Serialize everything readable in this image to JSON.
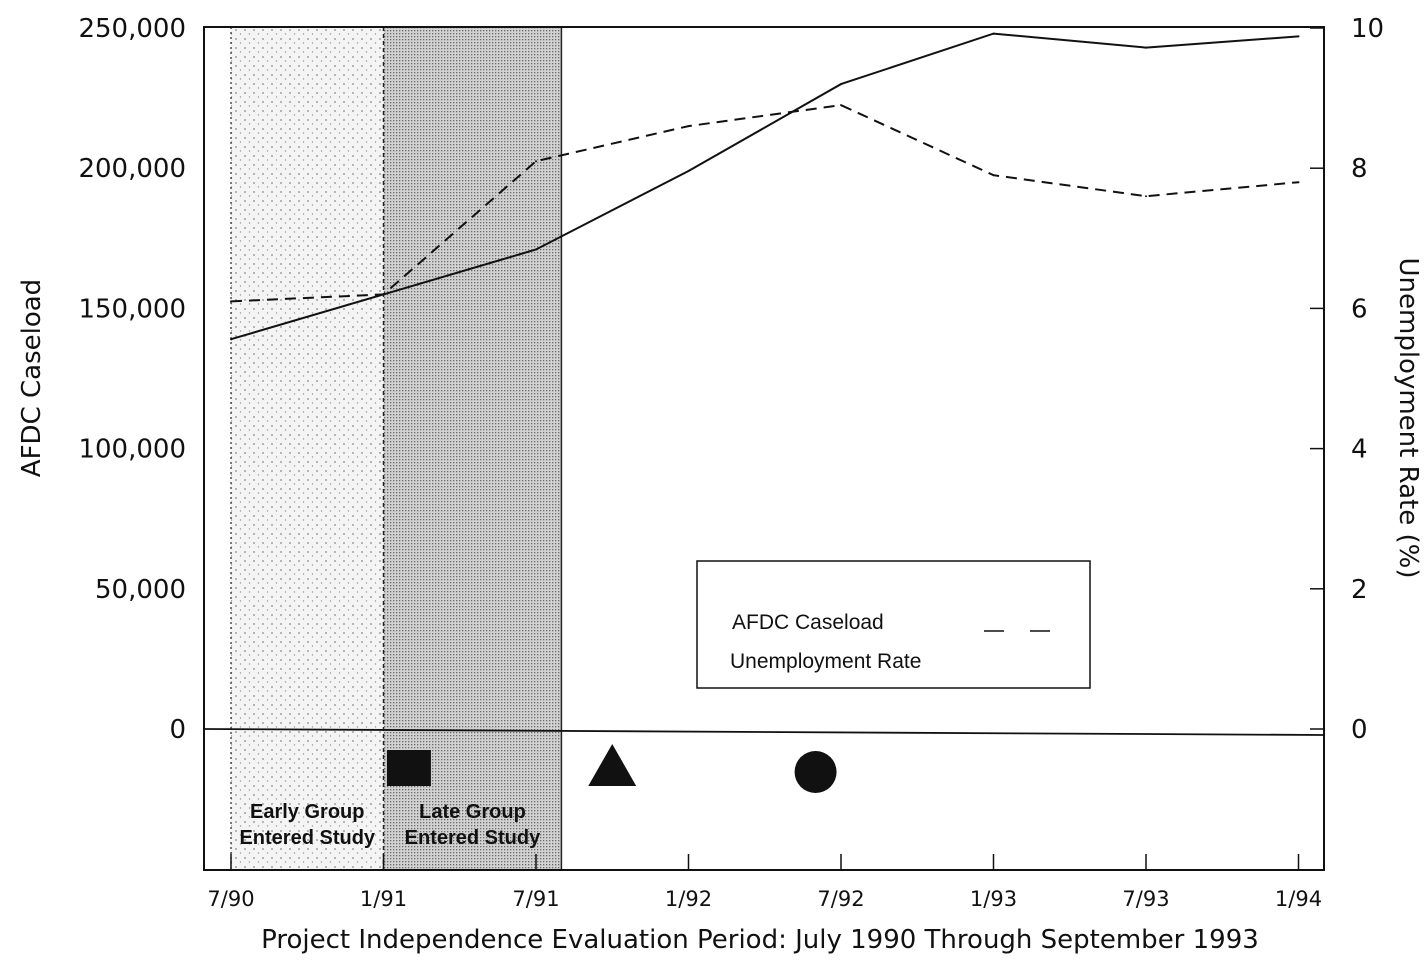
{
  "chart_data": {
    "type": "line",
    "x_ticks": [
      "7/90",
      "1/91",
      "7/91",
      "1/92",
      "7/92",
      "1/93",
      "7/93",
      "1/94"
    ],
    "xlabel": "Project Independence Evaluation Period: July 1990 Through September 1993",
    "ylabel_left": "AFDC Caseload",
    "ylabel_right": "Unemployment Rate (%)",
    "ylim_left": [
      0,
      250000
    ],
    "ylim_right": [
      0,
      10
    ],
    "yticks_left": [
      "250,000",
      "200,000",
      "150,000",
      "100,000",
      "50,000",
      "0"
    ],
    "yticks_right": [
      "10",
      "8",
      "6",
      "4",
      "2",
      "0"
    ],
    "series": [
      {
        "name": "AFDC Caseload",
        "axis": "left",
        "style": "solid",
        "x": [
          "7/90",
          "1/91",
          "7/91",
          "1/92",
          "7/92",
          "1/93",
          "7/93",
          "1/94"
        ],
        "values": [
          139000,
          155000,
          171000,
          199000,
          230000,
          248000,
          243000,
          247000
        ]
      },
      {
        "name": "Unemployment Rate",
        "axis": "right",
        "style": "dashed",
        "x": [
          "7/90",
          "1/91",
          "7/91",
          "1/92",
          "7/92",
          "1/93",
          "7/93",
          "1/94"
        ],
        "values": [
          6.1,
          6.2,
          8.1,
          8.6,
          8.9,
          7.9,
          7.6,
          7.8
        ]
      }
    ],
    "legend": {
      "placement": "lower-right",
      "entries": [
        "AFDC Caseload",
        "Unemployment Rate"
      ]
    },
    "periods": [
      {
        "label_line1": "Early Group",
        "label_line2": "Entered Study",
        "start": "7/90",
        "end": "1/91",
        "shade": "light"
      },
      {
        "label_line1": "Late Group",
        "label_line2": "Entered Study",
        "start": "1/91",
        "end": "8/91",
        "shade": "dark"
      }
    ],
    "markers": [
      {
        "shape": "square",
        "at": "2/91"
      },
      {
        "shape": "triangle",
        "at": "10/91"
      },
      {
        "shape": "circle",
        "at": "6/92"
      }
    ],
    "colors": {
      "line": "#111111",
      "light_shade": "#eeeeee",
      "dark_shade": "#c4c4c4"
    }
  }
}
